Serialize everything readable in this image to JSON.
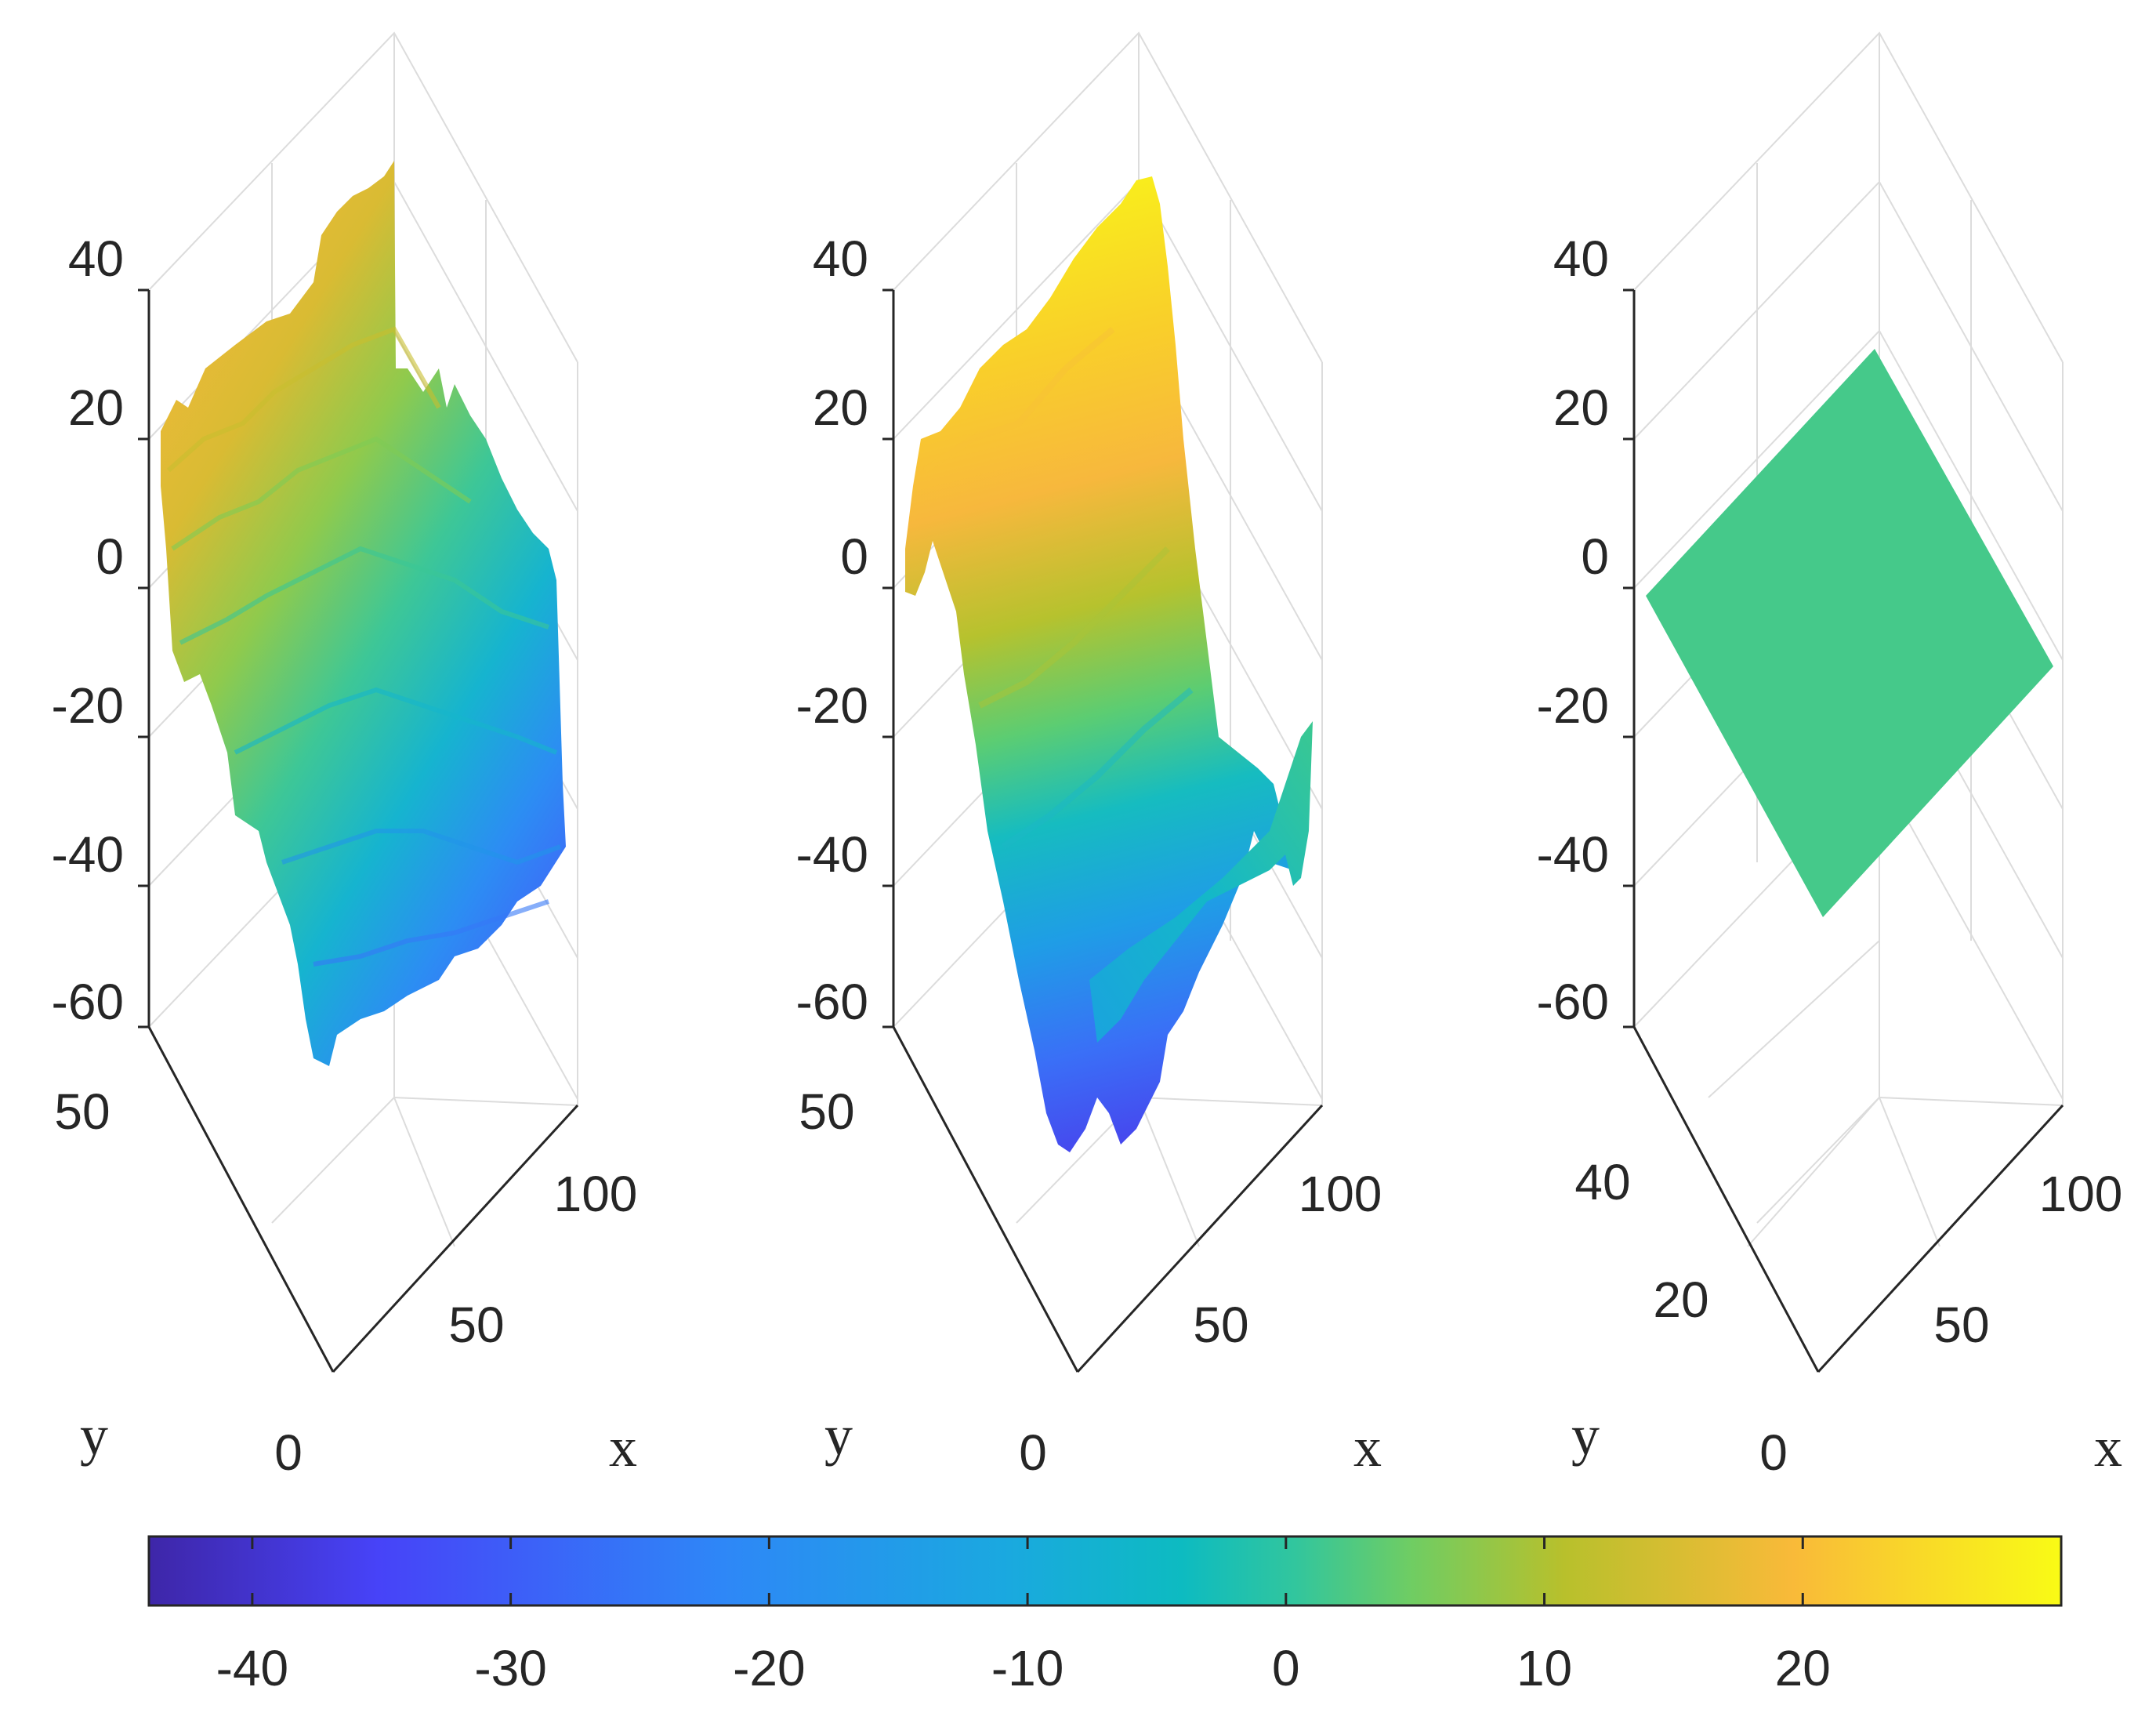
{
  "colors": {
    "parula": [
      "#3e26a8",
      "#4743f8",
      "#2e87f7",
      "#1aa9df",
      "#0dbbc1",
      "#32c69d",
      "#6fcd63",
      "#b8c02c",
      "#f9ba39",
      "#f9fb15"
    ],
    "axis": "#262626",
    "grid": "#dcdcdc"
  },
  "chart_data": [
    {
      "type": "surface",
      "panel": "left",
      "description_of_surface": "rough terrain",
      "xlabel": "x",
      "ylabel": "y",
      "z_ticks": [
        "40",
        "20",
        "0",
        "-20",
        "-40",
        "-60"
      ],
      "x_ticks": [
        "0",
        "50",
        "100"
      ],
      "y_ticks": [
        "50"
      ],
      "zlim": [
        -60,
        40
      ],
      "value_range": [
        -30,
        20
      ]
    },
    {
      "type": "surface",
      "panel": "middle",
      "xlabel": "x",
      "ylabel": "y",
      "z_ticks": [
        "40",
        "20",
        "0",
        "-20",
        "-40",
        "-60"
      ],
      "x_ticks": [
        "0",
        "50",
        "100"
      ],
      "y_ticks": [
        "50"
      ],
      "zlim": [
        -60,
        40
      ],
      "value_range": [
        -44,
        30
      ]
    },
    {
      "type": "surface",
      "panel": "right",
      "xlabel": "x",
      "ylabel": "y",
      "z_ticks": [
        "40",
        "20",
        "0",
        "-20",
        "-40",
        "-60"
      ],
      "x_ticks": [
        "0",
        "50",
        "100"
      ],
      "y_ticks": [
        "20",
        "40"
      ],
      "zlim": [
        -60,
        40
      ],
      "value_range": [
        0,
        0
      ]
    }
  ],
  "colorbar": {
    "min": -44,
    "max": 30,
    "ticks": [
      -40,
      -30,
      -20,
      -10,
      0,
      10,
      20
    ],
    "tick_labels": [
      "-40",
      "-30",
      "-20",
      "-10",
      "0",
      "10",
      "20"
    ]
  }
}
